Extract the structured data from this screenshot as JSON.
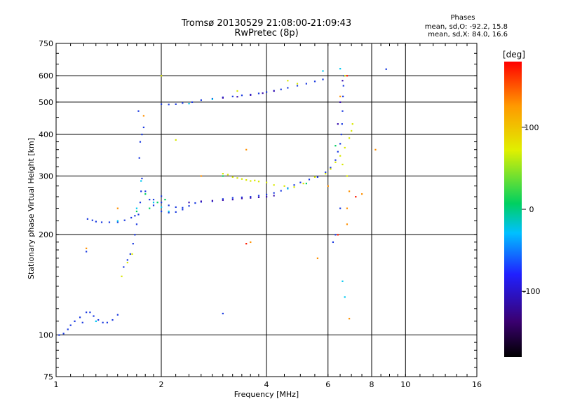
{
  "header": {
    "title_line1": "Tromsø 20130529 21:08:00-21:09:43",
    "title_line2": "RwPretec (8p)",
    "phases_title": "Phases",
    "phases_o": "mean, sd,O: -92.2, 15.8",
    "phases_x": "mean, sd,X:  84.0, 16.6"
  },
  "chart_data": {
    "type": "scatter",
    "title": "Tromsø 20130529 21:08:00-21:09:43",
    "subtitle": "RwPretec (8p)",
    "xlabel": "Frequency [MHz]",
    "ylabel": "Stationary phase Virtual Height [km]",
    "x_scale": "log",
    "y_scale": "log",
    "xlim": [
      1,
      16
    ],
    "ylim": [
      75,
      750
    ],
    "x_ticks": [
      1,
      2,
      4,
      6,
      8,
      10,
      16
    ],
    "y_ticks": [
      75,
      100,
      200,
      300,
      400,
      500,
      600,
      750
    ],
    "grid": true,
    "colorbar": {
      "label": "[deg]",
      "range": [
        -180,
        180
      ],
      "ticks": [
        100,
        0,
        -100
      ],
      "colors": [
        "#000000",
        "#3a0070",
        "#2020ff",
        "#00c0ff",
        "#00d060",
        "#e0f000",
        "#ff9900",
        "#ff0000"
      ]
    },
    "series": [
      {
        "color": "#1a3ae0",
        "points": [
          [
            1.02,
            100
          ],
          [
            1.05,
            101
          ],
          [
            1.08,
            104
          ],
          [
            1.1,
            107
          ],
          [
            1.13,
            110
          ],
          [
            1.17,
            113
          ],
          [
            1.19,
            109
          ],
          [
            1.22,
            117
          ],
          [
            1.25,
            117
          ],
          [
            1.28,
            114
          ],
          [
            1.32,
            111
          ],
          [
            1.36,
            109
          ],
          [
            1.4,
            109
          ],
          [
            1.45,
            111
          ],
          [
            1.5,
            115
          ],
          [
            1.23,
            223
          ],
          [
            1.27,
            221
          ],
          [
            1.3,
            219
          ],
          [
            1.35,
            218
          ],
          [
            1.42,
            218
          ],
          [
            1.5,
            218
          ],
          [
            1.57,
            221
          ],
          [
            1.64,
            225
          ],
          [
            1.68,
            228
          ],
          [
            1.56,
            160
          ],
          [
            1.6,
            168
          ],
          [
            1.63,
            175
          ],
          [
            1.66,
            188
          ],
          [
            1.68,
            200
          ],
          [
            1.7,
            215
          ],
          [
            1.72,
            230
          ],
          [
            1.74,
            250
          ],
          [
            1.75,
            270
          ],
          [
            1.76,
            295
          ],
          [
            1.73,
            340
          ],
          [
            1.74,
            380
          ],
          [
            1.76,
            400
          ],
          [
            1.78,
            420
          ],
          [
            1.8,
            270
          ],
          [
            1.85,
            255
          ],
          [
            1.9,
            245
          ],
          [
            2.0,
            235
          ],
          [
            2.1,
            233
          ],
          [
            2.2,
            234
          ],
          [
            2.3,
            238
          ],
          [
            2.4,
            244
          ],
          [
            2.5,
            249
          ],
          [
            2.6,
            251
          ],
          [
            2.8,
            252
          ],
          [
            3.0,
            256
          ],
          [
            3.2,
            258
          ],
          [
            3.4,
            259
          ],
          [
            3.6,
            260
          ],
          [
            3.8,
            262
          ],
          [
            4.0,
            264
          ],
          [
            4.2,
            267
          ],
          [
            4.4,
            271
          ],
          [
            4.6,
            276
          ],
          [
            4.8,
            282
          ],
          [
            5.0,
            287
          ],
          [
            5.3,
            293
          ],
          [
            5.6,
            298
          ],
          [
            5.9,
            308
          ],
          [
            6.1,
            318
          ],
          [
            6.3,
            335
          ],
          [
            6.4,
            355
          ],
          [
            6.5,
            375
          ],
          [
            6.55,
            400
          ],
          [
            6.58,
            430
          ],
          [
            6.6,
            470
          ],
          [
            6.62,
            520
          ],
          [
            6.64,
            560
          ],
          [
            6.66,
            600
          ],
          [
            2.0,
            493
          ],
          [
            2.1,
            492
          ],
          [
            2.2,
            493
          ],
          [
            2.3,
            497
          ],
          [
            2.45,
            500
          ],
          [
            2.6,
            507
          ],
          [
            2.8,
            512
          ],
          [
            3.0,
            517
          ],
          [
            3.2,
            520
          ],
          [
            3.4,
            524
          ],
          [
            3.6,
            527
          ],
          [
            3.8,
            531
          ],
          [
            4.0,
            536
          ],
          [
            4.2,
            541
          ],
          [
            4.4,
            546
          ],
          [
            4.6,
            552
          ],
          [
            4.9,
            560
          ],
          [
            5.2,
            568
          ],
          [
            5.5,
            577
          ],
          [
            5.8,
            585
          ],
          [
            2.0,
            250
          ],
          [
            2.1,
            245
          ],
          [
            2.2,
            242
          ],
          [
            2.3,
            241
          ],
          [
            1.9,
            255
          ],
          [
            2.0,
            261
          ],
          [
            3.0,
            116
          ],
          [
            1.22,
            178
          ],
          [
            1.72,
            470
          ],
          [
            6.2,
            190
          ],
          [
            6.3,
            200
          ],
          [
            6.5,
            240
          ],
          [
            8.8,
            628
          ]
        ]
      },
      {
        "color": "#3a10b0",
        "points": [
          [
            2.8,
            253
          ],
          [
            3.0,
            254
          ],
          [
            3.2,
            255
          ],
          [
            3.4,
            257
          ],
          [
            3.6,
            258
          ],
          [
            3.8,
            259
          ],
          [
            4.0,
            260
          ],
          [
            4.2,
            262
          ],
          [
            3.0,
            515
          ],
          [
            3.3,
            519
          ],
          [
            3.6,
            525
          ],
          [
            3.9,
            532
          ],
          [
            4.2,
            540
          ],
          [
            2.4,
            250
          ],
          [
            2.6,
            252
          ],
          [
            6.4,
            430
          ],
          [
            6.5,
            500
          ],
          [
            6.6,
            580
          ]
        ]
      },
      {
        "color": "#00c8f0",
        "points": [
          [
            1.3,
            110
          ],
          [
            1.5,
            220
          ],
          [
            1.7,
            240
          ],
          [
            1.9,
            250
          ],
          [
            2.1,
            235
          ],
          [
            2.4,
            495
          ],
          [
            2.8,
            510
          ],
          [
            4.6,
            275
          ],
          [
            5.8,
            620
          ],
          [
            6.5,
            630
          ],
          [
            6.7,
            130
          ],
          [
            6.6,
            145
          ],
          [
            1.75,
            290
          ],
          [
            2.0,
            242
          ]
        ]
      },
      {
        "color": "#00d060",
        "points": [
          [
            1.8,
            265
          ],
          [
            1.85,
            240
          ],
          [
            1.95,
            250
          ],
          [
            2.05,
            255
          ],
          [
            3.0,
            300
          ],
          [
            5.2,
            285
          ],
          [
            6.3,
            370
          ],
          [
            1.7,
            235
          ]
        ]
      },
      {
        "color": "#d8e800",
        "points": [
          [
            3.0,
            305
          ],
          [
            3.1,
            303
          ],
          [
            3.2,
            298
          ],
          [
            3.3,
            296
          ],
          [
            3.4,
            294
          ],
          [
            3.5,
            292
          ],
          [
            3.6,
            290
          ],
          [
            3.7,
            291
          ],
          [
            3.8,
            289
          ],
          [
            4.0,
            287
          ],
          [
            4.2,
            282
          ],
          [
            4.5,
            280
          ],
          [
            4.8,
            278
          ],
          [
            5.1,
            285
          ],
          [
            5.5,
            298
          ],
          [
            5.9,
            305
          ],
          [
            6.1,
            315
          ],
          [
            6.3,
            330
          ],
          [
            6.5,
            345
          ],
          [
            6.7,
            365
          ],
          [
            6.9,
            390
          ],
          [
            7.0,
            410
          ],
          [
            7.05,
            430
          ],
          [
            6.8,
            300
          ],
          [
            6.6,
            325
          ],
          [
            4.6,
            580
          ],
          [
            4.9,
            568
          ],
          [
            1.54,
            150
          ],
          [
            1.6,
            165
          ],
          [
            1.65,
            175
          ],
          [
            2.0,
            600
          ],
          [
            2.2,
            385
          ],
          [
            3.3,
            540
          ],
          [
            6.7,
            600
          ]
        ]
      },
      {
        "color": "#ff9000",
        "points": [
          [
            1.22,
            182
          ],
          [
            1.5,
            240
          ],
          [
            1.78,
            455
          ],
          [
            2.6,
            300
          ],
          [
            3.5,
            360
          ],
          [
            3.6,
            190
          ],
          [
            5.6,
            170
          ],
          [
            6.0,
            280
          ],
          [
            6.5,
            520
          ],
          [
            6.8,
            240
          ],
          [
            6.8,
            215
          ],
          [
            7.5,
            265
          ],
          [
            8.2,
            360
          ],
          [
            6.9,
            112
          ],
          [
            6.9,
            270
          ]
        ]
      },
      {
        "color": "#ff1a00",
        "points": [
          [
            3.5,
            188
          ],
          [
            6.4,
            200
          ],
          [
            6.8,
            600
          ],
          [
            7.2,
            260
          ]
        ]
      }
    ]
  }
}
